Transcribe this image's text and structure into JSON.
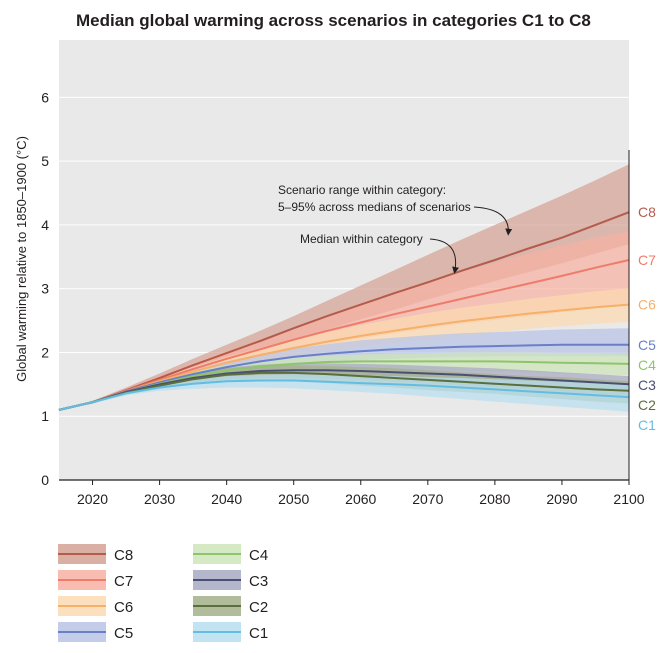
{
  "chart_data": {
    "type": "area",
    "title": "Median global warming across scenarios in categories C1 to C8",
    "ylabel": "Global warming relative to 1850–1900 (°C)",
    "xlabel": "",
    "xlim": [
      2015,
      2100
    ],
    "ylim": [
      0,
      6.9
    ],
    "xticks": [
      2020,
      2030,
      2040,
      2050,
      2060,
      2070,
      2080,
      2090,
      2100
    ],
    "yticks": [
      0,
      1,
      2,
      3,
      4,
      5,
      6
    ],
    "grid": "horizontal",
    "legend_position": "bottom",
    "x": [
      2015,
      2020,
      2025,
      2030,
      2035,
      2040,
      2045,
      2050,
      2055,
      2060,
      2065,
      2070,
      2075,
      2080,
      2085,
      2090,
      2095,
      2100
    ],
    "series": [
      {
        "name": "C1",
        "label": "C1",
        "line_color": "#63bde3",
        "band_color": "#b7dff0",
        "median": [
          1.1,
          1.22,
          1.36,
          1.45,
          1.51,
          1.55,
          1.56,
          1.56,
          1.54,
          1.52,
          1.5,
          1.48,
          1.45,
          1.42,
          1.39,
          1.36,
          1.33,
          1.3
        ],
        "low": [
          1.1,
          1.2,
          1.33,
          1.4,
          1.43,
          1.45,
          1.45,
          1.44,
          1.41,
          1.38,
          1.35,
          1.31,
          1.27,
          1.23,
          1.19,
          1.15,
          1.11,
          1.07
        ],
        "high": [
          1.1,
          1.24,
          1.4,
          1.5,
          1.58,
          1.63,
          1.65,
          1.66,
          1.65,
          1.64,
          1.63,
          1.61,
          1.6,
          1.58,
          1.56,
          1.54,
          1.52,
          1.5
        ]
      },
      {
        "name": "C2",
        "label": "C2",
        "line_color": "#5a6e3e",
        "band_color": "#a3b08a",
        "median": [
          1.1,
          1.22,
          1.37,
          1.48,
          1.58,
          1.65,
          1.68,
          1.68,
          1.66,
          1.63,
          1.6,
          1.57,
          1.54,
          1.51,
          1.48,
          1.45,
          1.42,
          1.4
        ],
        "low": [
          1.1,
          1.2,
          1.34,
          1.43,
          1.5,
          1.55,
          1.56,
          1.55,
          1.52,
          1.48,
          1.45,
          1.41,
          1.38,
          1.35,
          1.31,
          1.27,
          1.23,
          1.2
        ],
        "high": [
          1.1,
          1.24,
          1.41,
          1.54,
          1.66,
          1.75,
          1.79,
          1.8,
          1.79,
          1.77,
          1.75,
          1.72,
          1.69,
          1.66,
          1.63,
          1.61,
          1.58,
          1.55
        ]
      },
      {
        "name": "C3",
        "label": "C3",
        "line_color": "#4a4f74",
        "band_color": "#a7a9c2",
        "median": [
          1.1,
          1.22,
          1.38,
          1.5,
          1.6,
          1.67,
          1.71,
          1.72,
          1.72,
          1.71,
          1.69,
          1.67,
          1.65,
          1.62,
          1.59,
          1.56,
          1.53,
          1.5
        ],
        "low": [
          1.1,
          1.2,
          1.35,
          1.45,
          1.53,
          1.58,
          1.6,
          1.6,
          1.59,
          1.57,
          1.55,
          1.52,
          1.49,
          1.46,
          1.42,
          1.38,
          1.35,
          1.32
        ],
        "high": [
          1.1,
          1.24,
          1.41,
          1.55,
          1.67,
          1.76,
          1.81,
          1.83,
          1.83,
          1.82,
          1.81,
          1.79,
          1.77,
          1.75,
          1.72,
          1.69,
          1.66,
          1.63
        ]
      },
      {
        "name": "C4",
        "label": "C4",
        "line_color": "#8fc46a",
        "band_color": "#cde5ba",
        "median": [
          1.1,
          1.22,
          1.38,
          1.51,
          1.63,
          1.72,
          1.78,
          1.82,
          1.85,
          1.86,
          1.86,
          1.86,
          1.86,
          1.86,
          1.85,
          1.84,
          1.83,
          1.82
        ],
        "low": [
          1.1,
          1.2,
          1.35,
          1.46,
          1.56,
          1.64,
          1.69,
          1.72,
          1.74,
          1.74,
          1.73,
          1.72,
          1.71,
          1.7,
          1.69,
          1.67,
          1.66,
          1.64
        ],
        "high": [
          1.1,
          1.24,
          1.42,
          1.56,
          1.7,
          1.8,
          1.87,
          1.92,
          1.95,
          1.97,
          1.98,
          1.99,
          2.0,
          2.0,
          2.0,
          1.99,
          1.99,
          1.98
        ]
      },
      {
        "name": "C5",
        "label": "C5",
        "line_color": "#6a7fc7",
        "band_color": "#b9c4e6",
        "median": [
          1.1,
          1.22,
          1.39,
          1.53,
          1.66,
          1.77,
          1.86,
          1.93,
          1.98,
          2.02,
          2.05,
          2.07,
          2.09,
          2.1,
          2.11,
          2.12,
          2.12,
          2.12
        ],
        "low": [
          1.1,
          1.2,
          1.36,
          1.48,
          1.59,
          1.68,
          1.75,
          1.81,
          1.85,
          1.88,
          1.9,
          1.92,
          1.93,
          1.94,
          1.94,
          1.94,
          1.94,
          1.94
        ],
        "high": [
          1.1,
          1.24,
          1.42,
          1.58,
          1.73,
          1.86,
          1.97,
          2.06,
          2.13,
          2.19,
          2.23,
          2.27,
          2.3,
          2.32,
          2.34,
          2.36,
          2.37,
          2.38
        ]
      },
      {
        "name": "C6",
        "label": "C6",
        "line_color": "#f5b06a",
        "band_color": "#fcd9b0",
        "median": [
          1.1,
          1.22,
          1.39,
          1.55,
          1.7,
          1.84,
          1.96,
          2.07,
          2.17,
          2.26,
          2.34,
          2.42,
          2.49,
          2.55,
          2.61,
          2.66,
          2.71,
          2.75
        ],
        "low": [
          1.1,
          1.2,
          1.36,
          1.5,
          1.63,
          1.75,
          1.85,
          1.94,
          2.02,
          2.09,
          2.15,
          2.21,
          2.27,
          2.32,
          2.37,
          2.41,
          2.45,
          2.48
        ],
        "high": [
          1.1,
          1.24,
          1.43,
          1.6,
          1.77,
          1.93,
          2.07,
          2.2,
          2.32,
          2.43,
          2.53,
          2.62,
          2.7,
          2.77,
          2.84,
          2.9,
          2.96,
          3.01
        ]
      },
      {
        "name": "C7",
        "label": "C7",
        "line_color": "#ef7c6a",
        "band_color": "#f7b2a2",
        "median": [
          1.1,
          1.22,
          1.4,
          1.57,
          1.74,
          1.9,
          2.05,
          2.2,
          2.34,
          2.47,
          2.6,
          2.72,
          2.84,
          2.96,
          3.08,
          3.2,
          3.33,
          3.45
        ],
        "low": [
          1.1,
          1.2,
          1.37,
          1.52,
          1.66,
          1.8,
          1.93,
          2.04,
          2.13,
          2.22,
          2.3,
          2.38,
          2.45,
          2.51,
          2.57,
          2.63,
          2.69,
          2.75
        ],
        "high": [
          1.1,
          1.24,
          1.44,
          1.63,
          1.83,
          2.02,
          2.2,
          2.39,
          2.58,
          2.77,
          2.94,
          3.1,
          3.26,
          3.41,
          3.55,
          3.68,
          3.8,
          3.9
        ]
      },
      {
        "name": "C8",
        "label": "C8",
        "line_color": "#b55b4c",
        "band_color": "#d4a294",
        "median": [
          1.1,
          1.22,
          1.41,
          1.6,
          1.8,
          1.99,
          2.18,
          2.38,
          2.57,
          2.75,
          2.93,
          3.1,
          3.28,
          3.45,
          3.63,
          3.8,
          4.0,
          4.2
        ],
        "low": [
          1.1,
          1.2,
          1.37,
          1.54,
          1.71,
          1.88,
          2.04,
          2.2,
          2.36,
          2.52,
          2.67,
          2.83,
          2.98,
          3.12,
          3.26,
          3.4,
          3.55,
          3.7
        ],
        "high": [
          1.1,
          1.24,
          1.45,
          1.67,
          1.9,
          2.12,
          2.34,
          2.57,
          2.81,
          3.05,
          3.29,
          3.53,
          3.77,
          4.0,
          4.23,
          4.46,
          4.7,
          4.95
        ]
      }
    ],
    "end_label_order": [
      "C8",
      "C7",
      "C6",
      "C5",
      "C4",
      "C3",
      "C2",
      "C1"
    ],
    "legend_order": [
      "C8",
      "C7",
      "C6",
      "C5",
      "C4",
      "C3",
      "C2",
      "C1"
    ],
    "annotations": [
      {
        "lines": [
          "Scenario range within category:",
          "5–95% across medians of scenarios"
        ],
        "target_series": "C8",
        "target_x": 2082,
        "target_y": 3.8
      },
      {
        "lines": [
          "Median within category"
        ],
        "target_series": "C8",
        "target_x": 2074,
        "target_y": 3.2
      }
    ]
  }
}
